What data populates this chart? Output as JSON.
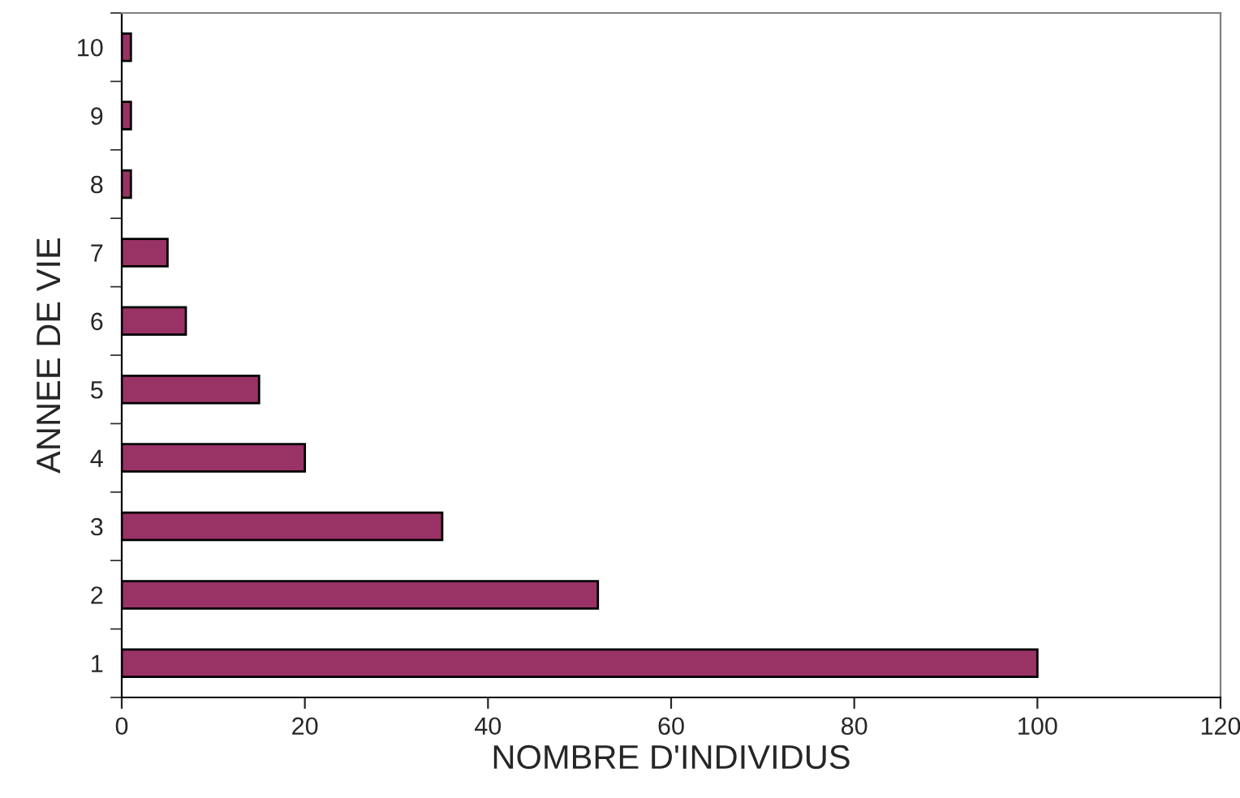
{
  "chart_data": {
    "type": "bar",
    "orientation": "horizontal",
    "xlabel": "NOMBRE D'INDIVIDUS",
    "ylabel": "ANNEE DE VIE",
    "categories": [
      "10",
      "9",
      "8",
      "7",
      "6",
      "5",
      "4",
      "3",
      "2",
      "1"
    ],
    "values": [
      1,
      1,
      1,
      5,
      7,
      15,
      20,
      35,
      52,
      100
    ],
    "color": "#993366",
    "xlim": [
      0,
      120
    ],
    "xticks": [
      0,
      20,
      40,
      60,
      80,
      100,
      120
    ],
    "grid": false,
    "legend": false
  }
}
